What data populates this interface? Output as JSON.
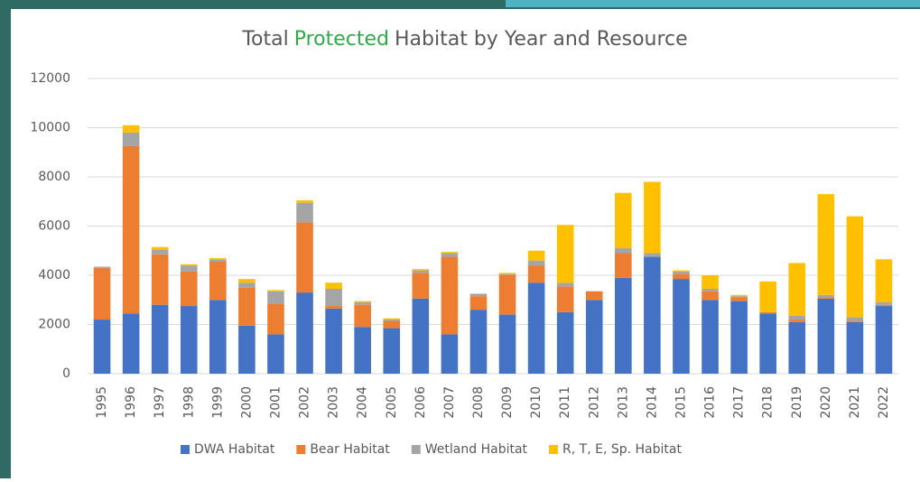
{
  "chart_data": {
    "type": "stacked_bar",
    "title": [
      "Total",
      "Protected",
      "Habitat by Year and Resource"
    ],
    "title_highlight_index": 1,
    "title_highlight_color": "#2eab48",
    "categories": [
      "1995",
      "1996",
      "1997",
      "1998",
      "1999",
      "2000",
      "2001",
      "2002",
      "2003",
      "2004",
      "2005",
      "2006",
      "2007",
      "2008",
      "2009",
      "2010",
      "2011",
      "2012",
      "2013",
      "2014",
      "2015",
      "2016",
      "2017",
      "2018",
      "2019",
      "2020",
      "2021",
      "2022"
    ],
    "series": [
      {
        "name": "DWA Habitat",
        "color": "#4472c4",
        "values": [
          2200,
          2450,
          2800,
          2750,
          3000,
          1950,
          1600,
          3300,
          2650,
          1900,
          1850,
          3050,
          1600,
          2600,
          2400,
          3700,
          2500,
          3000,
          3900,
          4750,
          3850,
          3000,
          2950,
          2450,
          2100,
          3050,
          2100,
          2750
        ]
      },
      {
        "name": "Bear Habitat",
        "color": "#ed7d31",
        "values": [
          2100,
          6800,
          2050,
          1400,
          1550,
          1550,
          1250,
          2850,
          100,
          900,
          300,
          1050,
          3150,
          550,
          1600,
          700,
          1050,
          350,
          1000,
          0,
          200,
          350,
          150,
          50,
          100,
          50,
          50,
          50
        ]
      },
      {
        "name": "Wetland Habitat",
        "color": "#a5a5a5",
        "values": [
          50,
          550,
          200,
          250,
          100,
          200,
          500,
          800,
          700,
          100,
          50,
          100,
          150,
          100,
          50,
          200,
          150,
          0,
          200,
          150,
          100,
          100,
          50,
          0,
          150,
          100,
          150,
          100
        ]
      },
      {
        "name": "R, T, E, Sp. Habitat",
        "color": "#ffc000",
        "values": [
          0,
          300,
          100,
          50,
          50,
          150,
          50,
          100,
          250,
          50,
          50,
          50,
          50,
          0,
          50,
          400,
          2350,
          0,
          2250,
          2900,
          50,
          550,
          50,
          1250,
          2150,
          4100,
          4100,
          1750
        ]
      }
    ],
    "ylim": [
      0,
      12000
    ],
    "yticks": [
      0,
      2000,
      4000,
      6000,
      8000,
      10000,
      12000
    ],
    "grid": true,
    "legend": "bottom"
  }
}
